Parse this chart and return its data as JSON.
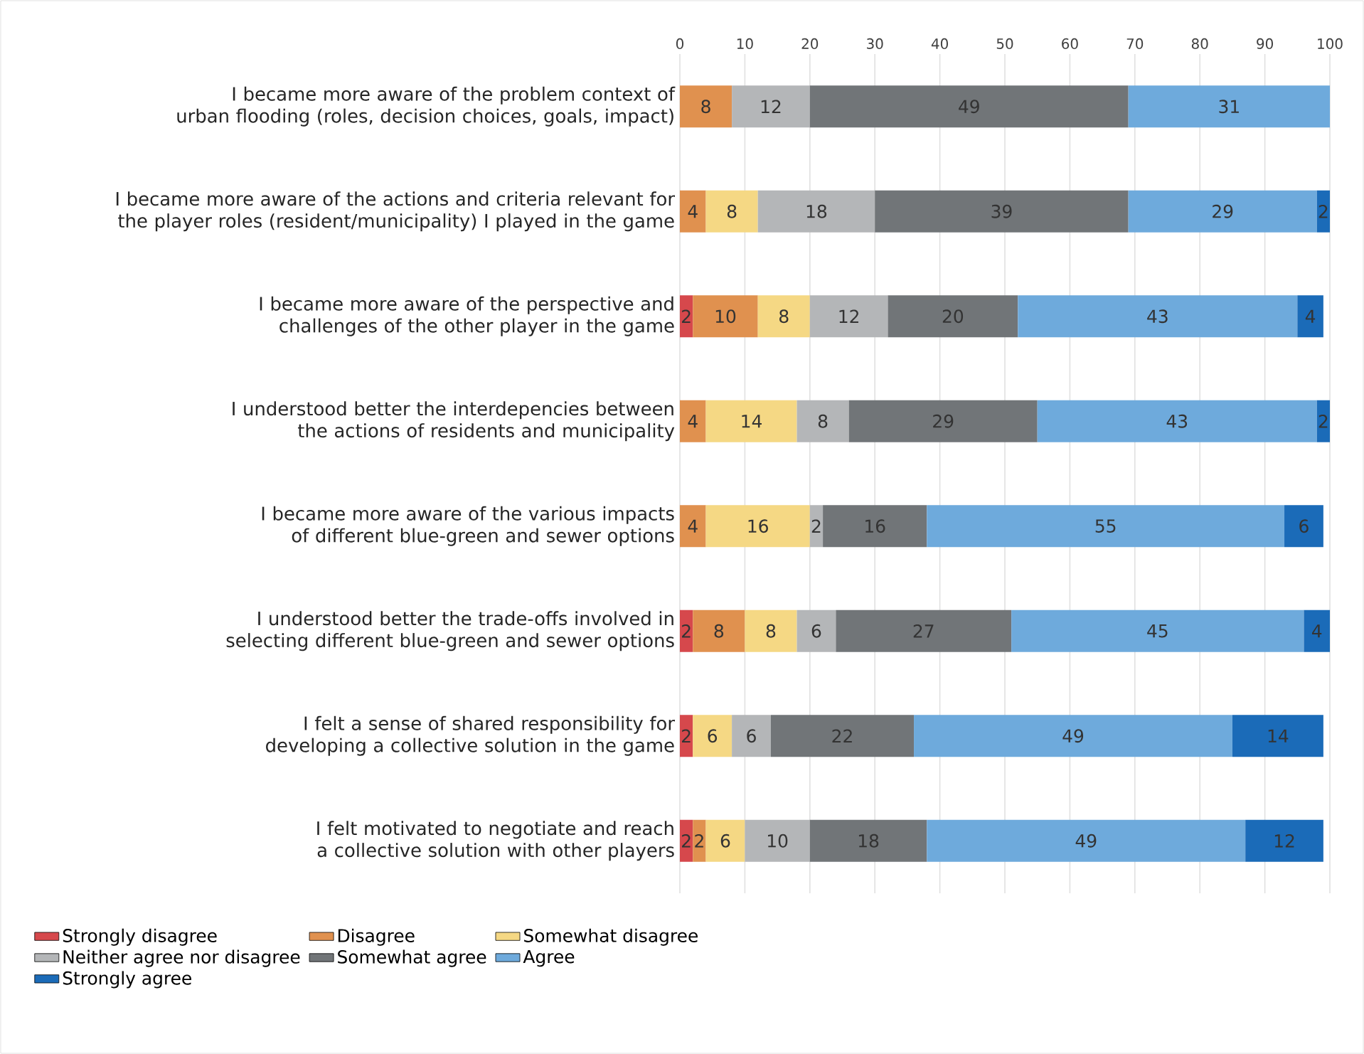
{
  "chart_data": {
    "type": "bar",
    "orientation": "horizontal",
    "stacked": true,
    "data_labels": true,
    "grid": "x",
    "legend": "bottom",
    "categories": [
      "I became more aware of the problem context of urban flooding (roles, decision choices, goals, impact)",
      "I became more aware of the actions and criteria relevant for the player roles (resident/municipality) I played in the game",
      "I became more aware of the perspective and challenges of the other player in the game",
      "I understood better the interdepencies between the actions of residents and municipality",
      "I became more aware of the various impacts of different blue-green and sewer options",
      "I understood better the trade-offs involved in selecting different blue-green and sewer options",
      "I felt a sense of shared responsibility for developing a collective solution in the game",
      "I felt motivated to negotiate and reach a collective solution with other players"
    ],
    "xlim": [
      0,
      100
    ],
    "xticks": [
      0,
      10,
      20,
      30,
      40,
      50,
      60,
      70,
      80,
      90,
      100
    ],
    "series": [
      {
        "name": "Strongly disagree",
        "color": "#d6484c",
        "values": [
          null,
          null,
          2,
          null,
          null,
          2,
          2,
          2
        ]
      },
      {
        "name": "Disagree",
        "color": "#e0914f",
        "values": [
          8,
          4,
          10,
          4,
          4,
          8,
          null,
          2
        ]
      },
      {
        "name": "Somewhat disagree",
        "color": "#f5d884",
        "values": [
          null,
          8,
          8,
          14,
          16,
          8,
          6,
          6
        ]
      },
      {
        "name": "Neither agree nor disagree",
        "color": "#b4b6b8",
        "values": [
          12,
          18,
          12,
          8,
          2,
          6,
          6,
          10
        ]
      },
      {
        "name": "Somewhat agree",
        "color": "#717578",
        "values": [
          49,
          39,
          20,
          29,
          16,
          27,
          22,
          18
        ]
      },
      {
        "name": "Agree",
        "color": "#6eaadc",
        "values": [
          31,
          29,
          43,
          43,
          55,
          45,
          49,
          49
        ]
      },
      {
        "name": "Strongly agree",
        "color": "#1b6bb8",
        "values": [
          null,
          2,
          4,
          2,
          6,
          4,
          14,
          12
        ]
      }
    ]
  }
}
